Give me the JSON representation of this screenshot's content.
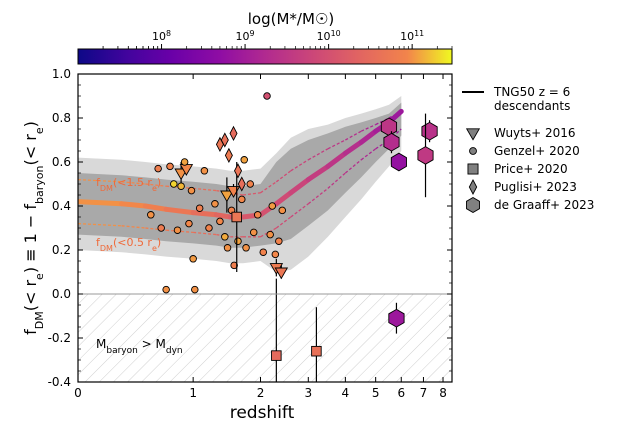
{
  "chart_data": {
    "type": "scatter",
    "xlabel": "redshift",
    "ylabel": "f_DM(<r_e) ≡ 1 − f_baryon(<r_e)",
    "xscale": "log(1+z)",
    "xlim": [
      0,
      8.5
    ],
    "ylim": [
      -0.4,
      1.0
    ],
    "x_ticks": [
      0,
      1,
      2,
      3,
      4,
      5,
      6,
      7,
      8
    ],
    "y_ticks": [
      -0.4,
      -0.2,
      0.0,
      0.2,
      0.4,
      0.6,
      0.8,
      1.0
    ],
    "colorbar": {
      "label": "log(M*/M☉)",
      "scale": "log",
      "range": [
        10000000,
        300000000000
      ],
      "colormap": "plasma",
      "ticks": [
        {
          "value": 100000000,
          "label": "10^8"
        },
        {
          "value": 1000000000,
          "label": "10^9"
        },
        {
          "value": 10000000000,
          "label": "10^10"
        },
        {
          "value": 100000000000,
          "label": "10^11"
        }
      ]
    },
    "tng50": {
      "name": "TNG50 z = 6 descendants",
      "z": [
        0.0,
        0.3,
        0.5,
        0.7,
        1.0,
        1.3,
        1.5,
        1.7,
        2.0,
        2.3,
        2.6,
        3.0,
        3.5,
        4.0,
        4.5,
        5.0,
        5.5,
        6.0
      ],
      "median": [
        0.42,
        0.41,
        0.4,
        0.385,
        0.37,
        0.36,
        0.35,
        0.35,
        0.36,
        0.41,
        0.46,
        0.52,
        0.58,
        0.64,
        0.69,
        0.74,
        0.78,
        0.83
      ],
      "p16_p84_upper": [
        0.55,
        0.54,
        0.53,
        0.52,
        0.51,
        0.5,
        0.49,
        0.49,
        0.5,
        0.6,
        0.66,
        0.7,
        0.73,
        0.76,
        0.78,
        0.8,
        0.82,
        0.87
      ],
      "p16_p84_lower": [
        0.27,
        0.26,
        0.25,
        0.24,
        0.23,
        0.22,
        0.21,
        0.21,
        0.22,
        0.23,
        0.25,
        0.31,
        0.38,
        0.46,
        0.53,
        0.6,
        0.66,
        0.72
      ],
      "p2_p98_upper": [
        0.62,
        0.61,
        0.6,
        0.59,
        0.58,
        0.57,
        0.56,
        0.56,
        0.57,
        0.64,
        0.71,
        0.75,
        0.77,
        0.8,
        0.82,
        0.84,
        0.86,
        0.9
      ],
      "p2_p98_lower": [
        0.2,
        0.19,
        0.18,
        0.17,
        0.16,
        0.15,
        0.14,
        0.14,
        0.15,
        0.1,
        0.11,
        0.17,
        0.26,
        0.35,
        0.43,
        0.51,
        0.58,
        0.65
      ],
      "fdm_1p5re": [
        0.52,
        0.51,
        0.5,
        0.49,
        0.48,
        0.47,
        0.46,
        0.45,
        0.46,
        0.51,
        0.56,
        0.61,
        0.66,
        0.7,
        0.74,
        0.77,
        0.8,
        0.83
      ],
      "fdm_0p5re": [
        0.32,
        0.31,
        0.3,
        0.29,
        0.28,
        0.27,
        0.26,
        0.26,
        0.26,
        0.3,
        0.35,
        0.41,
        0.48,
        0.55,
        0.61,
        0.66,
        0.7,
        0.75
      ],
      "curve_labels": [
        "f_DM(<1.5 r_e)",
        "f_DM(<0.5 r_e)"
      ],
      "median_mass": [
        100000000000,
        100000000000,
        80000000000,
        60000000000,
        40000000000,
        30000000000,
        20000000000,
        15000000000,
        12000000000,
        9000000000,
        7000000000,
        5000000000,
        3500000000,
        2500000000,
        1800000000,
        1300000000,
        900000000,
        700000000
      ]
    },
    "series": [
      {
        "name": "Wuyts+ 2016",
        "marker": "triangle-down",
        "points": [
          {
            "z": 0.86,
            "y": 0.55,
            "err": 0.05,
            "m": 100000000000
          },
          {
            "z": 0.92,
            "y": 0.57,
            "err": 0.03,
            "m": 90000000000
          },
          {
            "z": 1.45,
            "y": 0.45,
            "err": 0.08,
            "m": 120000000000
          },
          {
            "z": 1.55,
            "y": 0.47,
            "err": 0.03,
            "m": 80000000000
          },
          {
            "z": 2.3,
            "y": 0.12,
            "err": 0.04,
            "m": 60000000000
          },
          {
            "z": 2.4,
            "y": 0.1,
            "err": 0.03,
            "m": 50000000000
          }
        ]
      },
      {
        "name": "Genzel+ 2020",
        "marker": "circle",
        "points": [
          {
            "z": 0.55,
            "y": 0.36,
            "m": 100000000000
          },
          {
            "z": 0.62,
            "y": 0.57,
            "m": 70000000000
          },
          {
            "z": 0.65,
            "y": 0.3,
            "m": 60000000000
          },
          {
            "z": 0.7,
            "y": 0.02,
            "m": 100000000000
          },
          {
            "z": 0.74,
            "y": 0.58,
            "m": 80000000000
          },
          {
            "z": 0.78,
            "y": 0.5,
            "m": 200000000000
          },
          {
            "z": 0.82,
            "y": 0.29,
            "m": 100000000000
          },
          {
            "z": 0.86,
            "y": 0.49,
            "m": 150000000000
          },
          {
            "z": 0.9,
            "y": 0.6,
            "m": 120000000000
          },
          {
            "z": 0.95,
            "y": 0.32,
            "m": 90000000000
          },
          {
            "z": 0.98,
            "y": 0.47,
            "m": 100000000000
          },
          {
            "z": 1.02,
            "y": 0.02,
            "m": 100000000000
          },
          {
            "z": 1.08,
            "y": 0.39,
            "m": 70000000000
          },
          {
            "z": 1.14,
            "y": 0.56,
            "m": 100000000000
          },
          {
            "z": 1.2,
            "y": 0.3,
            "m": 80000000000
          },
          {
            "z": 1.28,
            "y": 0.41,
            "m": 100000000000
          },
          {
            "z": 1.35,
            "y": 0.33,
            "m": 90000000000
          },
          {
            "z": 1.42,
            "y": 0.26,
            "m": 130000000000
          },
          {
            "z": 1.46,
            "y": 0.21,
            "m": 100000000000
          },
          {
            "z": 1.52,
            "y": 0.38,
            "m": 80000000000
          },
          {
            "z": 1.56,
            "y": 0.13,
            "m": 70000000000
          },
          {
            "z": 1.62,
            "y": 0.24,
            "m": 120000000000
          },
          {
            "z": 1.68,
            "y": 0.43,
            "m": 90000000000
          },
          {
            "z": 1.75,
            "y": 0.21,
            "m": 100000000000
          },
          {
            "z": 1.82,
            "y": 0.5,
            "m": 80000000000
          },
          {
            "z": 1.88,
            "y": 0.28,
            "m": 100000000000
          },
          {
            "z": 1.95,
            "y": 0.36,
            "m": 90000000000
          },
          {
            "z": 2.05,
            "y": 0.19,
            "m": 80000000000
          },
          {
            "z": 2.12,
            "y": 0.9,
            "m": 10000000000
          },
          {
            "z": 2.18,
            "y": 0.27,
            "m": 100000000000
          },
          {
            "z": 2.22,
            "y": 0.4,
            "m": 110000000000
          },
          {
            "z": 2.28,
            "y": 0.18,
            "m": 90000000000
          },
          {
            "z": 2.35,
            "y": 0.24,
            "m": 80000000000
          },
          {
            "z": 2.42,
            "y": 0.38,
            "m": 100000000000
          },
          {
            "z": 1.72,
            "y": 0.61,
            "m": 120000000000
          },
          {
            "z": 1.0,
            "y": 0.16,
            "m": 110000000000
          }
        ]
      },
      {
        "name": "Price+ 2020",
        "marker": "square",
        "points": [
          {
            "z": 1.6,
            "y": 0.35,
            "err": 0.25,
            "m": 50000000000
          },
          {
            "z": 2.3,
            "y": -0.28,
            "err": 0.35,
            "m": 30000000000
          },
          {
            "z": 3.2,
            "y": -0.26,
            "err": 0.2,
            "m": 40000000000
          }
        ]
      },
      {
        "name": "Puglisi+ 2023",
        "marker": "diamond",
        "points": [
          {
            "z": 1.35,
            "y": 0.68,
            "m": 50000000000
          },
          {
            "z": 1.42,
            "y": 0.7,
            "m": 40000000000
          },
          {
            "z": 1.48,
            "y": 0.63,
            "m": 60000000000
          },
          {
            "z": 1.55,
            "y": 0.73,
            "m": 30000000000
          },
          {
            "z": 1.62,
            "y": 0.56,
            "m": 45000000000
          },
          {
            "z": 1.68,
            "y": 0.5,
            "m": 35000000000
          }
        ]
      },
      {
        "name": "de Graaff+ 2023",
        "marker": "hexagon",
        "points": [
          {
            "z": 5.5,
            "y": 0.76,
            "err": 0.04,
            "m": 3000000000
          },
          {
            "z": 5.6,
            "y": 0.69,
            "err": 0.05,
            "m": 2000000000
          },
          {
            "z": 5.9,
            "y": 0.6,
            "err": 0.04,
            "m": 600000000
          },
          {
            "z": 5.8,
            "y": -0.11,
            "err": 0.07,
            "m": 800000000
          },
          {
            "z": 7.3,
            "y": 0.74,
            "err": 0.05,
            "m": 2500000000
          },
          {
            "z": 7.1,
            "y": 0.63,
            "err": 0.19,
            "m": 3500000000
          }
        ]
      }
    ],
    "annotation": "M_baryon > M_dyn",
    "legend_position": "upper right, outside axes",
    "legend": [
      "TNG50 z = 6 descendants",
      "Wuyts+ 2016",
      "Genzel+ 2020",
      "Price+ 2020",
      "Puglisi+ 2023",
      "de Graaff+ 2023"
    ]
  }
}
